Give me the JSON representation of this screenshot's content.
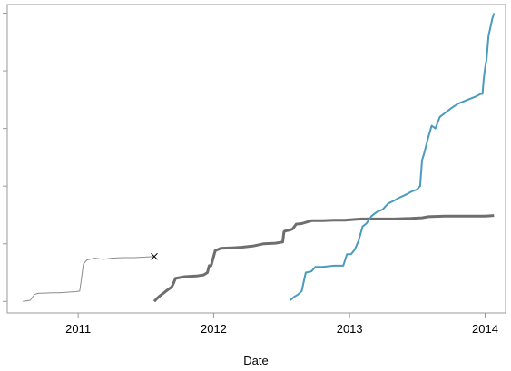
{
  "chart_data": {
    "type": "line",
    "xlabel": "Date",
    "ylabel": "",
    "xlim": [
      "2010-06-24",
      "2014-02-25"
    ],
    "ylim": [
      -0.2,
      5.15
    ],
    "x_ticks": [
      "2011-01-01",
      "2012-01-01",
      "2013-01-01",
      "2014-01-01"
    ],
    "x_tick_labels": [
      "2011",
      "2012",
      "2013",
      "2014"
    ],
    "y_ticks": [
      0,
      1,
      2,
      3,
      4,
      5
    ],
    "y_tick_labels": [
      "",
      "",
      "",
      "",
      "",
      ""
    ],
    "grid": false,
    "legend": "none",
    "series": [
      {
        "color": "#8c8c8c",
        "width": 1,
        "end_marker": "x",
        "x": [
          "2010-08-05",
          "2010-08-25",
          "2010-09-05",
          "2010-09-15",
          "2010-10-25",
          "2010-11-10",
          "2010-12-25",
          "2011-01-05",
          "2011-01-10",
          "2011-01-15",
          "2011-01-25",
          "2011-02-15",
          "2011-03-10",
          "2011-04-01",
          "2011-05-01",
          "2011-06-01",
          "2011-07-01",
          "2011-07-25"
        ],
        "y": [
          0.0,
          0.02,
          0.12,
          0.14,
          0.15,
          0.15,
          0.17,
          0.18,
          0.4,
          0.65,
          0.72,
          0.75,
          0.73,
          0.75,
          0.76,
          0.76,
          0.77,
          0.78
        ]
      },
      {
        "color": "#6e6e6e",
        "width": 3,
        "x": [
          "2011-07-25",
          "2011-08-01",
          "2011-08-10",
          "2011-08-20",
          "2011-08-30",
          "2011-09-10",
          "2011-09-15",
          "2011-09-20",
          "2011-10-15",
          "2011-11-15",
          "2011-12-05",
          "2011-12-15",
          "2011-12-20",
          "2011-12-25",
          "2012-01-05",
          "2012-01-20",
          "2012-02-20",
          "2012-03-15",
          "2012-04-15",
          "2012-05-15",
          "2012-06-15",
          "2012-07-05",
          "2012-07-08",
          "2012-07-10",
          "2012-07-25",
          "2012-08-01",
          "2012-08-10",
          "2012-08-25",
          "2012-09-20",
          "2012-10-20",
          "2012-11-20",
          "2012-12-20",
          "2013-02-01",
          "2013-03-15",
          "2013-05-01",
          "2013-06-15",
          "2013-07-15",
          "2013-08-01",
          "2013-09-15",
          "2013-10-15",
          "2013-11-15",
          "2014-01-01",
          "2014-01-25"
        ],
        "y": [
          0.0,
          0.05,
          0.1,
          0.15,
          0.2,
          0.25,
          0.32,
          0.4,
          0.43,
          0.44,
          0.46,
          0.5,
          0.62,
          0.62,
          0.88,
          0.92,
          0.93,
          0.94,
          0.96,
          1.0,
          1.01,
          1.03,
          1.2,
          1.22,
          1.24,
          1.26,
          1.34,
          1.35,
          1.4,
          1.4,
          1.41,
          1.41,
          1.43,
          1.43,
          1.43,
          1.44,
          1.45,
          1.47,
          1.48,
          1.48,
          1.48,
          1.48,
          1.49
        ]
      },
      {
        "color": "#4a9bbd",
        "width": 2,
        "x": [
          "2012-07-25",
          "2012-08-05",
          "2012-08-15",
          "2012-08-25",
          "2012-09-05",
          "2012-09-20",
          "2012-10-01",
          "2012-10-20",
          "2012-11-20",
          "2012-12-15",
          "2012-12-25",
          "2013-01-05",
          "2013-01-15",
          "2013-01-25",
          "2013-02-05",
          "2013-02-15",
          "2013-03-01",
          "2013-03-15",
          "2013-04-01",
          "2013-04-15",
          "2013-05-01",
          "2013-05-15",
          "2013-06-01",
          "2013-06-15",
          "2013-07-01",
          "2013-07-10",
          "2013-07-15",
          "2013-07-20",
          "2013-08-01",
          "2013-08-10",
          "2013-08-20",
          "2013-09-01",
          "2013-09-15",
          "2013-10-01",
          "2013-10-20",
          "2013-11-15",
          "2013-12-05",
          "2013-12-20",
          "2013-12-25",
          "2013-12-28",
          "2014-01-01",
          "2014-01-05",
          "2014-01-10",
          "2014-01-20",
          "2014-01-25"
        ],
        "y": [
          0.02,
          0.08,
          0.12,
          0.18,
          0.5,
          0.52,
          0.6,
          0.6,
          0.62,
          0.62,
          0.82,
          0.82,
          0.9,
          1.05,
          1.3,
          1.35,
          1.48,
          1.55,
          1.6,
          1.7,
          1.75,
          1.8,
          1.85,
          1.9,
          1.94,
          2.0,
          2.45,
          2.55,
          2.85,
          3.05,
          3.0,
          3.2,
          3.27,
          3.35,
          3.43,
          3.5,
          3.55,
          3.6,
          3.6,
          3.85,
          4.05,
          4.2,
          4.6,
          4.9,
          5.0
        ]
      }
    ]
  }
}
